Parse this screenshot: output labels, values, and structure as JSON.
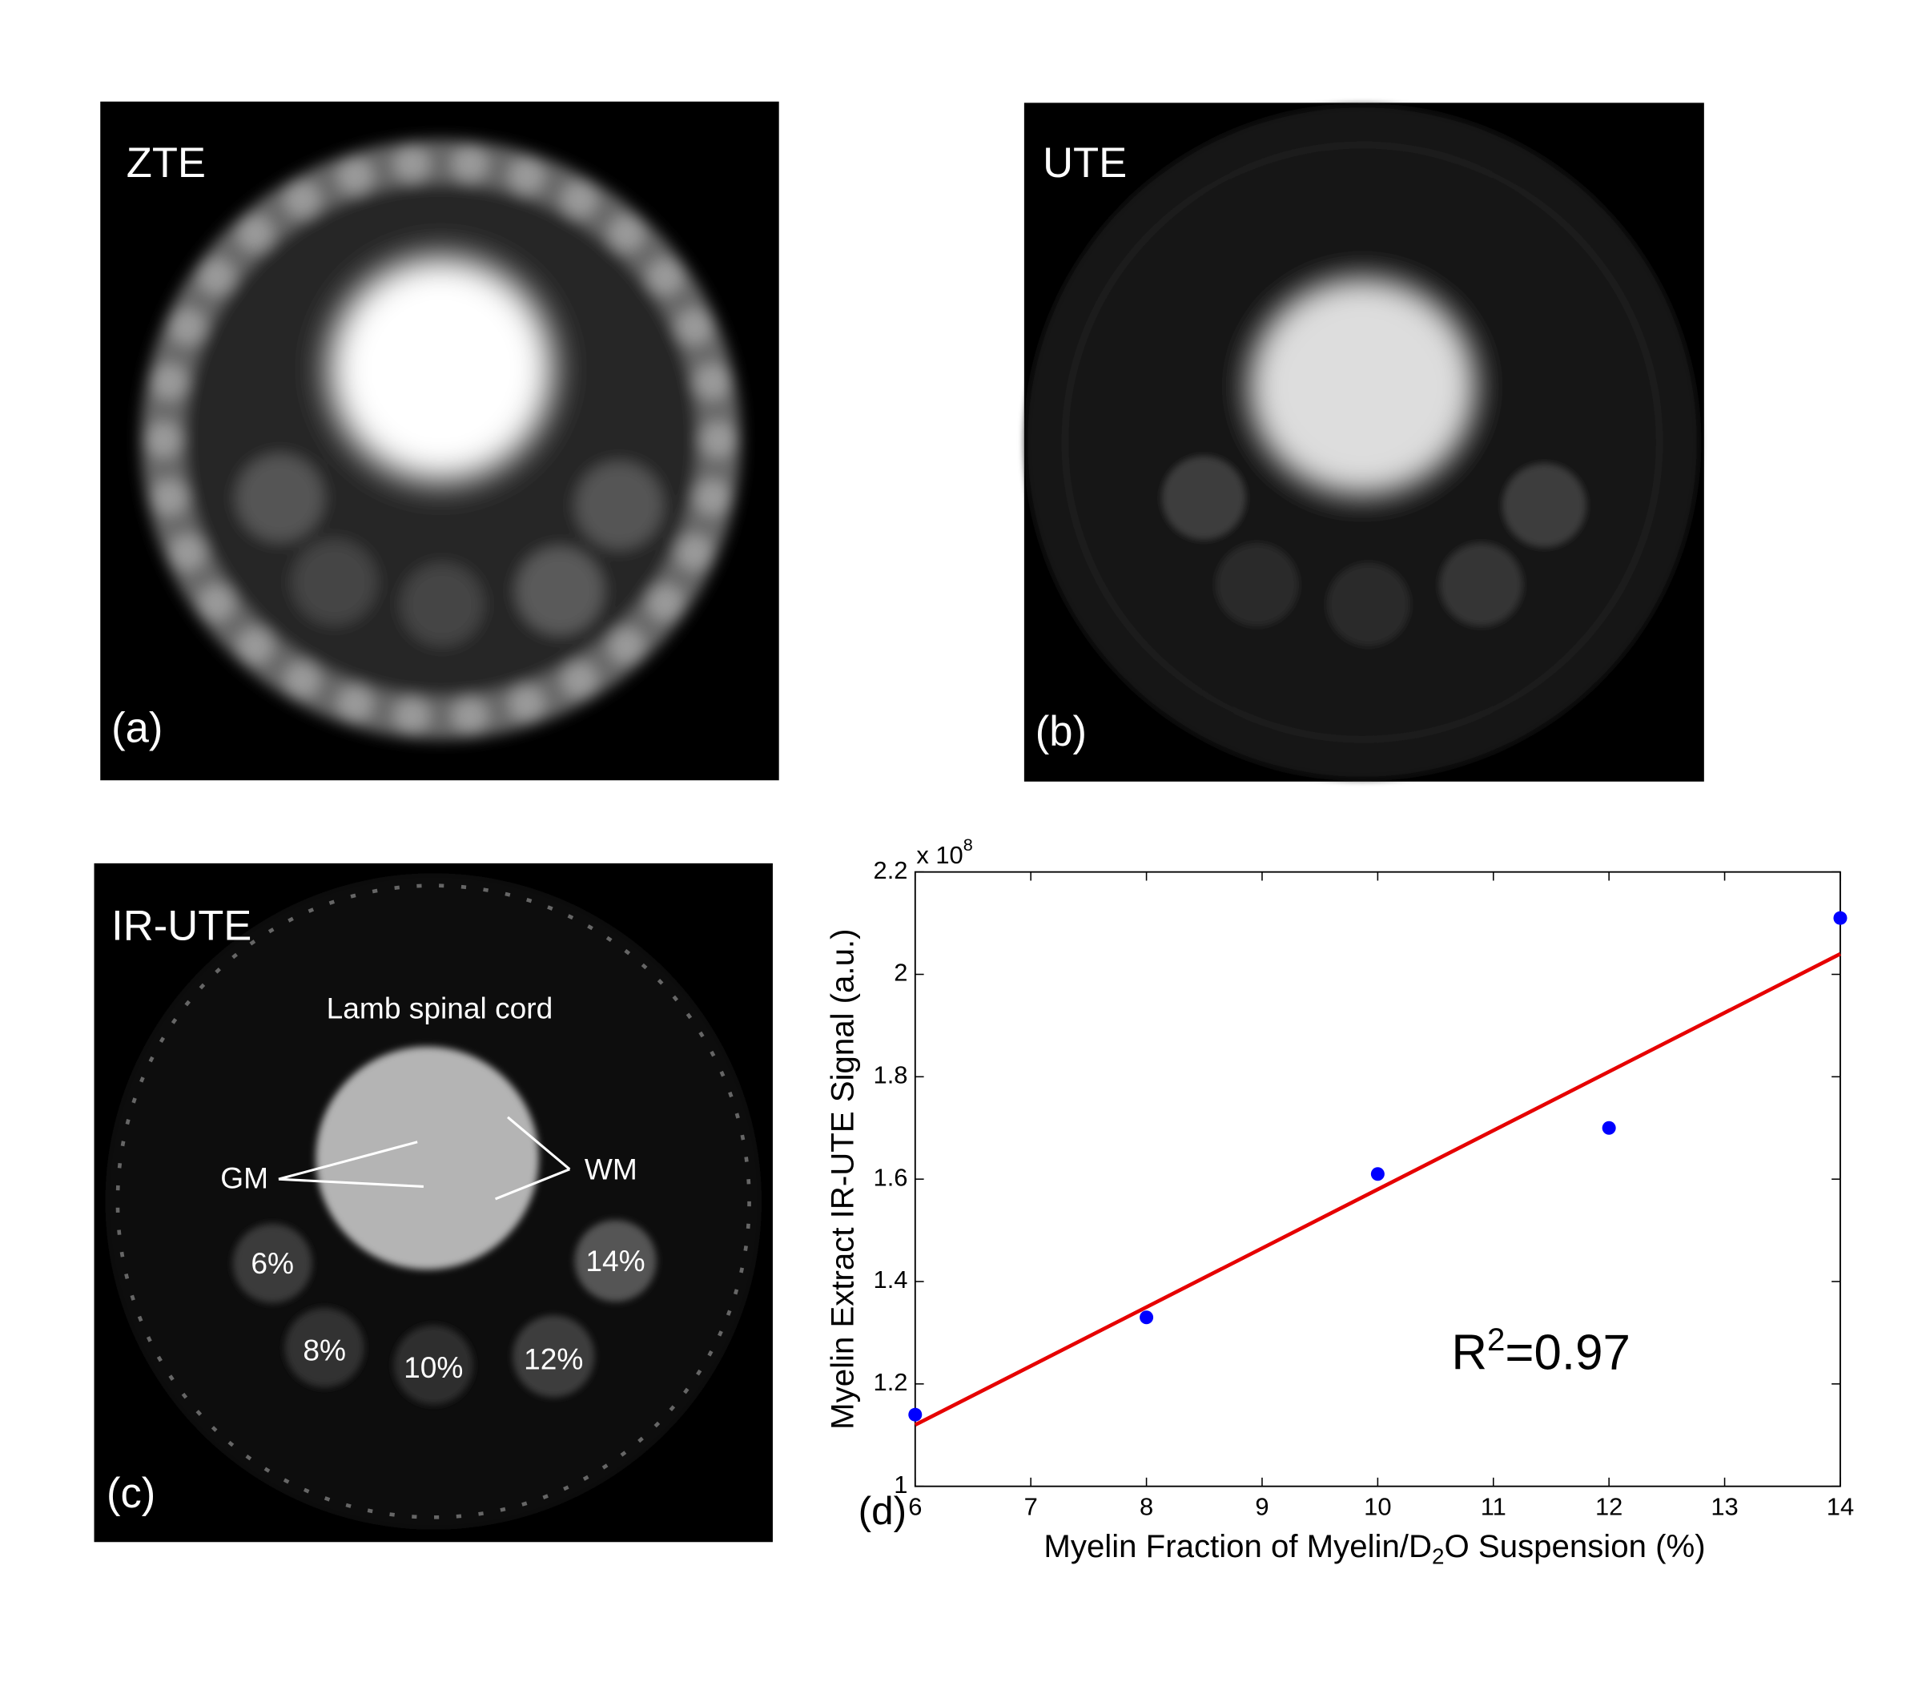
{
  "panels": {
    "a": {
      "label": "ZTE",
      "tag": "(a)"
    },
    "b": {
      "label": "UTE",
      "tag": "(b)"
    },
    "c": {
      "label": "IR-UTE",
      "tag": "(c)",
      "annotations": {
        "cord": "Lamb spinal cord",
        "gm": "GM",
        "wm": "WM",
        "vials": [
          "6%",
          "8%",
          "10%",
          "12%",
          "14%"
        ]
      }
    }
  },
  "chart_data": {
    "type": "scatter",
    "tag": "(d)",
    "x": [
      6,
      8,
      10,
      12,
      14
    ],
    "values": [
      1.14,
      1.33,
      1.61,
      1.7,
      2.11
    ],
    "color": "#0000ff",
    "fit": {
      "x": [
        6,
        14
      ],
      "values": [
        1.12,
        2.04
      ],
      "color": "#e60000"
    },
    "xlim": [
      6,
      14
    ],
    "ylim": [
      1,
      2.2
    ],
    "xticks": [
      6,
      7,
      8,
      9,
      10,
      11,
      12,
      13,
      14
    ],
    "yticks": [
      1,
      1.2,
      1.4,
      1.6,
      1.8,
      2,
      2.2
    ],
    "y_multiplier": {
      "base": "x 10",
      "exponent": "8"
    },
    "xlabel": {
      "before": "Myelin Fraction of Myelin/D",
      "subscript": "2",
      "after": "O Suspension (%)"
    },
    "ylabel": "Myelin Extract IR-UTE Signal (a.u.)",
    "annotation": {
      "base": "R",
      "superscript": "2",
      "text": "=0.97"
    }
  }
}
